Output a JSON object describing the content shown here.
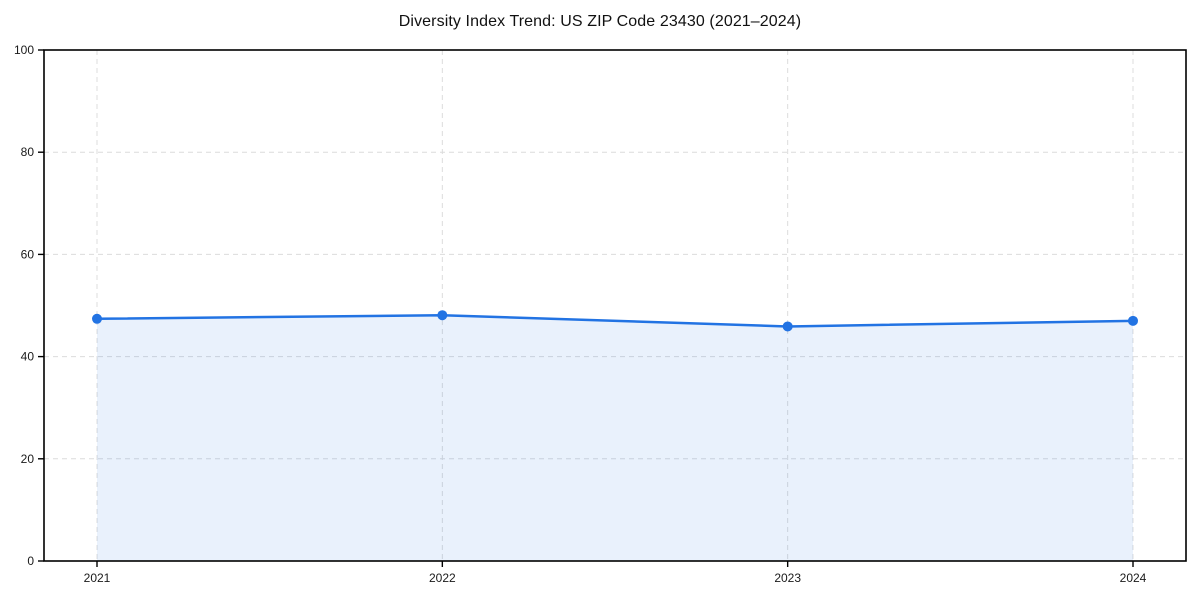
{
  "chart_data": {
    "type": "line",
    "title": "Diversity Index Trend: US ZIP Code 23430 (2021–2024)",
    "categories": [
      "2021",
      "2022",
      "2023",
      "2024"
    ],
    "series": [
      {
        "name": "Diversity Index",
        "values": [
          47.4,
          48.1,
          45.9,
          47.0
        ]
      }
    ],
    "xlabel": "",
    "ylabel": "",
    "ylim": [
      0,
      100
    ],
    "yticks": [
      0,
      20,
      40,
      60,
      80,
      100
    ],
    "grid": true,
    "grid_style": "dashed",
    "legend_position": "none",
    "area_fill": true,
    "fill_opacity": 0.1,
    "colors": {
      "line": "#2273e3",
      "marker": "#2273e3",
      "fill": "#2575e2",
      "grid": "#dcdcdc",
      "axis": "#000000",
      "text": "#1a1a1a",
      "background": "#ffffff"
    }
  }
}
